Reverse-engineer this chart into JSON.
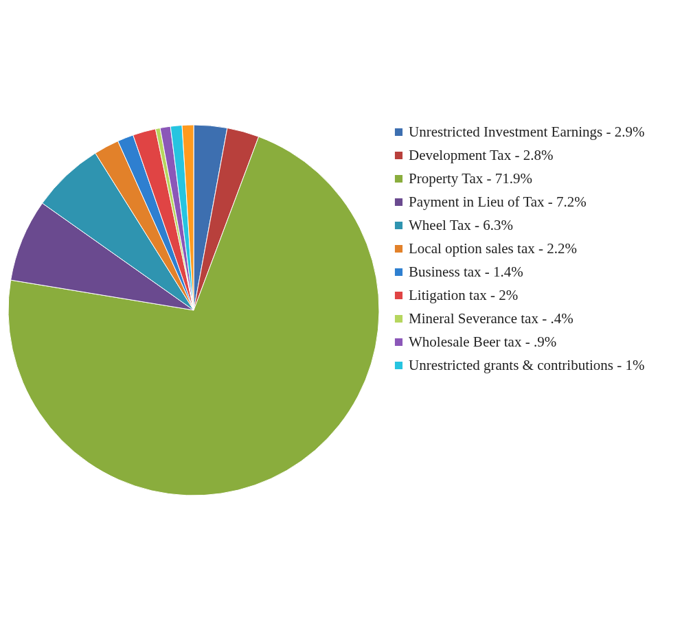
{
  "chart_data": {
    "type": "pie",
    "categories": [
      "Unrestricted Investment Earnings - 2.9%",
      "Development Tax - 2.8%",
      "Property Tax - 71.9%",
      "Payment in Lieu of Tax - 7.2%",
      "Wheel Tax - 6.3%",
      "Local option sales tax - 2.2%",
      "Business tax - 1.4%",
      "Litigation tax - 2%",
      "Mineral Severance tax - .4%",
      "Wholesale Beer tax - .9%",
      "Unrestricted grants & contributions - 1%",
      null
    ],
    "values": [
      2.9,
      2.8,
      71.9,
      7.2,
      6.3,
      2.2,
      1.4,
      2,
      0.4,
      0.9,
      1,
      1
    ],
    "colors": [
      "#3d6fb0",
      "#b8403c",
      "#8aad3d",
      "#6a4a8f",
      "#2f94b0",
      "#e2812a",
      "#2e7fd0",
      "#e04444",
      "#b6d65e",
      "#8b57b8",
      "#26c4e0",
      "#ff9a1e"
    ],
    "legend": "right"
  }
}
